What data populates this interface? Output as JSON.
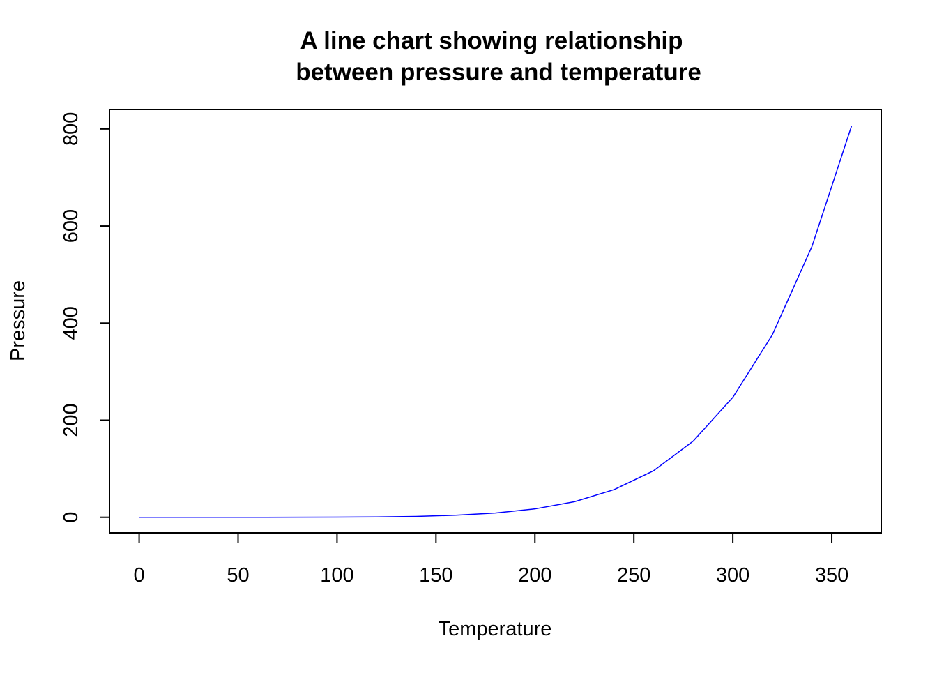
{
  "chart_data": {
    "type": "line",
    "title_lines": [
      "A line chart showing relationship",
      "between pressure and temperature"
    ],
    "xlabel": "Temperature",
    "ylabel": "Pressure",
    "xlim": [
      -15,
      375
    ],
    "ylim": [
      -32,
      840
    ],
    "xticks": [
      0,
      50,
      100,
      150,
      200,
      250,
      300,
      350
    ],
    "yticks": [
      0,
      200,
      400,
      600,
      800
    ],
    "grid": false,
    "legend": "none",
    "series": [
      {
        "color": "#0000ff",
        "x": [
          0,
          20,
          40,
          60,
          80,
          100,
          120,
          140,
          160,
          180,
          200,
          220,
          240,
          260,
          280,
          300,
          320,
          340,
          360
        ],
        "y": [
          0.0002,
          0.0012,
          0.006,
          0.03,
          0.09,
          0.27,
          0.75,
          1.85,
          4.2,
          8.8,
          17.3,
          32.1,
          57.0,
          96.0,
          157.0,
          247.0,
          376.0,
          558.0,
          806.0
        ]
      }
    ]
  }
}
